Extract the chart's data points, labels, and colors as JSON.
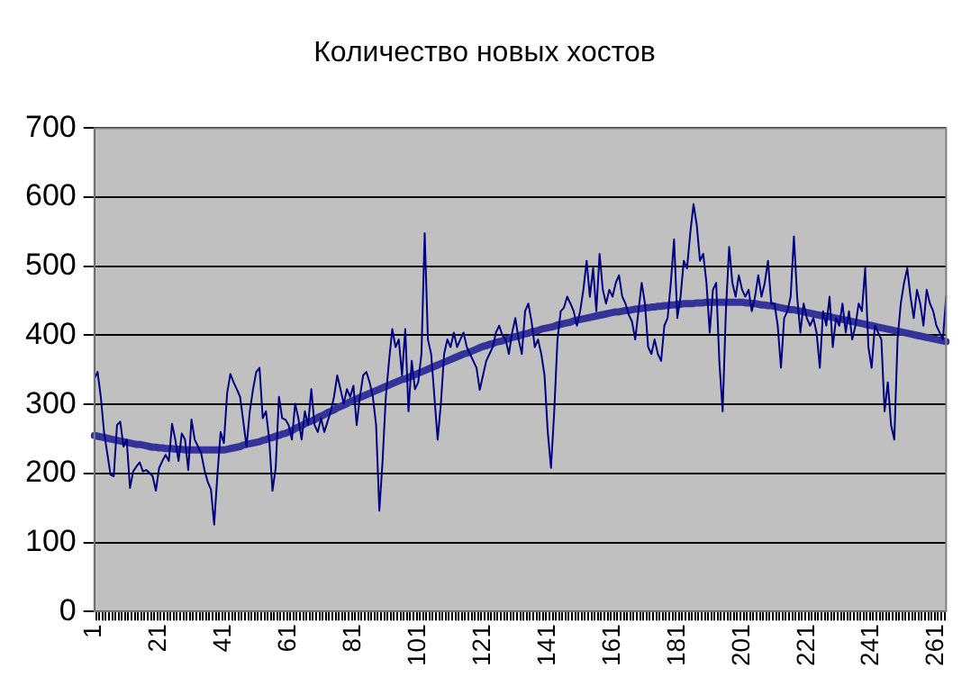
{
  "chart_data": {
    "type": "line",
    "title": "Количество новых хостов",
    "categories": [
      "1",
      null,
      null,
      null,
      null,
      null,
      null,
      null,
      null,
      null,
      null,
      null,
      null,
      null,
      null,
      null,
      null,
      null,
      null,
      null,
      "21",
      null,
      null,
      null,
      null,
      null,
      null,
      null,
      null,
      null,
      null,
      null,
      null,
      null,
      null,
      null,
      null,
      null,
      null,
      null,
      "41",
      null,
      null,
      null,
      null,
      null,
      null,
      null,
      null,
      null,
      null,
      null,
      null,
      null,
      null,
      null,
      null,
      null,
      null,
      null,
      "61",
      null,
      null,
      null,
      null,
      null,
      null,
      null,
      null,
      null,
      null,
      null,
      null,
      null,
      null,
      null,
      null,
      null,
      null,
      null,
      "81",
      null,
      null,
      null,
      null,
      null,
      null,
      null,
      null,
      null,
      null,
      null,
      null,
      null,
      null,
      null,
      null,
      null,
      null,
      null,
      "101",
      null,
      null,
      null,
      null,
      null,
      null,
      null,
      null,
      null,
      null,
      null,
      null,
      null,
      null,
      null,
      null,
      null,
      null,
      null,
      "121",
      null,
      null,
      null,
      null,
      null,
      null,
      null,
      null,
      null,
      null,
      null,
      null,
      null,
      null,
      null,
      null,
      null,
      null,
      null,
      "141",
      null,
      null,
      null,
      null,
      null,
      null,
      null,
      null,
      null,
      null,
      null,
      null,
      null,
      null,
      null,
      null,
      null,
      null,
      null,
      "161",
      null,
      null,
      null,
      null,
      null,
      null,
      null,
      null,
      null,
      null,
      null,
      null,
      null,
      null,
      null,
      null,
      null,
      null,
      null,
      "181",
      null,
      null,
      null,
      null,
      null,
      null,
      null,
      null,
      null,
      null,
      null,
      null,
      null,
      null,
      null,
      null,
      null,
      null,
      null,
      "201",
      null,
      null,
      null,
      null,
      null,
      null,
      null,
      null,
      null,
      null,
      null,
      null,
      null,
      null,
      null,
      null,
      null,
      null,
      null,
      "221",
      null,
      null,
      null,
      null,
      null,
      null,
      null,
      null,
      null,
      null,
      null,
      null,
      null,
      null,
      null,
      null,
      null,
      null,
      null,
      "241",
      null,
      null,
      null,
      null,
      null,
      null,
      null,
      null,
      null,
      null,
      null,
      null,
      null,
      null,
      null,
      null,
      null,
      null,
      null,
      "261",
      null,
      null,
      null
    ],
    "series": [
      {
        "type": "line",
        "color": "#000080",
        "values": [
          337,
          347,
          311,
          260,
          229,
          198,
          196,
          270,
          275,
          239,
          249,
          179,
          203,
          210,
          216,
          203,
          205,
          201,
          196,
          175,
          208,
          218,
          227,
          218,
          272,
          249,
          218,
          258,
          249,
          205,
          278,
          249,
          239,
          229,
          205,
          188,
          177,
          126,
          198,
          260,
          244,
          316,
          344,
          332,
          322,
          311,
          275,
          239,
          290,
          322,
          347,
          353,
          280,
          290,
          249,
          175,
          208,
          311,
          280,
          278,
          270,
          249,
          301,
          280,
          249,
          290,
          270,
          322,
          270,
          260,
          280,
          260,
          275,
          290,
          311,
          342,
          322,
          301,
          322,
          311,
          327,
          270,
          311,
          342,
          347,
          332,
          311,
          270,
          146,
          218,
          311,
          363,
          409,
          383,
          394,
          342,
          409,
          290,
          363,
          322,
          332,
          373,
          548,
          394,
          373,
          311,
          249,
          301,
          373,
          394,
          383,
          404,
          383,
          394,
          404,
          383,
          373,
          363,
          353,
          321,
          342,
          363,
          373,
          383,
          404,
          414,
          400,
          394,
          373,
          404,
          425,
          394,
          373,
          435,
          446,
          420,
          383,
          394,
          373,
          342,
          260,
          208,
          290,
          394,
          435,
          440,
          456,
          446,
          435,
          414,
          435,
          466,
          508,
          456,
          497,
          435,
          518,
          466,
          446,
          466,
          456,
          476,
          487,
          456,
          446,
          430,
          420,
          394,
          435,
          476,
          446,
          383,
          373,
          394,
          373,
          363,
          414,
          425,
          476,
          539,
          425,
          456,
          508,
          497,
          548,
          590,
          560,
          508,
          518,
          476,
          404,
          466,
          476,
          360,
          290,
          435,
          528,
          476,
          456,
          487,
          466,
          456,
          466,
          435,
          456,
          487,
          456,
          476,
          508,
          446,
          446,
          414,
          353,
          425,
          435,
          456,
          543,
          456,
          404,
          446,
          425,
          414,
          425,
          404,
          353,
          435,
          414,
          456,
          383,
          425,
          414,
          446,
          404,
          435,
          394,
          414,
          446,
          435,
          497,
          383,
          353,
          414,
          404,
          394,
          290,
          332,
          270,
          249,
          394,
          446,
          476,
          497,
          456,
          425,
          466,
          446,
          414,
          466,
          446,
          435,
          414,
          404,
          394,
          456
        ]
      },
      {
        "type": "line",
        "color": "#333399",
        "values": [
          255,
          254,
          253,
          252,
          251,
          250,
          249,
          248,
          247,
          246,
          245,
          244,
          243,
          242,
          242,
          241,
          240,
          239,
          238,
          238,
          237,
          237,
          236,
          236,
          236,
          235,
          235,
          235,
          234,
          234,
          234,
          234,
          234,
          234,
          234,
          234,
          234,
          234,
          234,
          234,
          234,
          235,
          236,
          237,
          238,
          239,
          241,
          242,
          243,
          244,
          245,
          246,
          248,
          249,
          251,
          252,
          254,
          255,
          257,
          258,
          260,
          262,
          265,
          267,
          269,
          272,
          274,
          276,
          278,
          281,
          283,
          285,
          288,
          290,
          292,
          295,
          297,
          299,
          301,
          304,
          306,
          308,
          310,
          312,
          314,
          316,
          318,
          320,
          322,
          324,
          326,
          328,
          330,
          332,
          334,
          336,
          337,
          339,
          341,
          343,
          345,
          347,
          349,
          351,
          353,
          355,
          357,
          359,
          361,
          363,
          365,
          367,
          369,
          371,
          373,
          374,
          376,
          378,
          380,
          382,
          384,
          385,
          387,
          388,
          390,
          391,
          392,
          394,
          395,
          397,
          398,
          399,
          401,
          402,
          403,
          405,
          406,
          407,
          409,
          410,
          411,
          412,
          413,
          415,
          416,
          417,
          418,
          419,
          421,
          422,
          423,
          424,
          425,
          426,
          427,
          428,
          429,
          430,
          431,
          432,
          433,
          434,
          434,
          435,
          436,
          436,
          437,
          438,
          438,
          439,
          440,
          440,
          441,
          441,
          442,
          442,
          443,
          443,
          444,
          444,
          445,
          445,
          446,
          446,
          446,
          446,
          447,
          447,
          447,
          448,
          448,
          448,
          448,
          448,
          448,
          448,
          448,
          448,
          448,
          448,
          448,
          447,
          447,
          446,
          446,
          445,
          444,
          444,
          443,
          443,
          442,
          441,
          440,
          439,
          438,
          437,
          437,
          436,
          435,
          434,
          433,
          432,
          431,
          430,
          429,
          428,
          428,
          427,
          426,
          425,
          424,
          423,
          422,
          421,
          420,
          419,
          418,
          417,
          416,
          415,
          414,
          413,
          412,
          411,
          410,
          409,
          408,
          407,
          406,
          405,
          404,
          403,
          402,
          401,
          400,
          399,
          398,
          397,
          396,
          395,
          394,
          393,
          392,
          391
        ]
      }
    ],
    "ylim": [
      0,
      700
    ],
    "yticks": [
      0,
      100,
      200,
      300,
      400,
      500,
      600,
      700
    ],
    "grid": "y",
    "legend": false,
    "marker": "none",
    "line_style": "solid"
  }
}
